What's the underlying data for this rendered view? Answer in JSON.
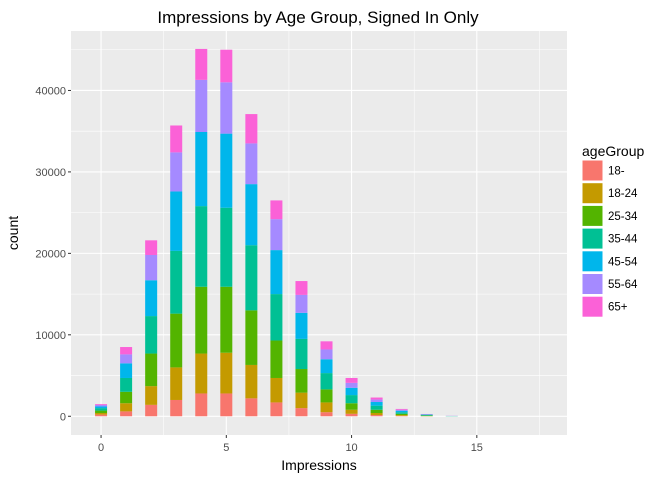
{
  "chart_data": {
    "type": "bar",
    "stacked": true,
    "title": "Impressions by Age Group, Signed In Only",
    "xlabel": "Impressions",
    "ylabel": "count",
    "x": [
      0,
      1,
      2,
      3,
      4,
      5,
      6,
      7,
      8,
      9,
      10,
      11,
      12,
      13,
      14,
      15,
      16,
      17
    ],
    "xlim": [
      -1.2,
      18.6
    ],
    "ylim": [
      -2300,
      47300
    ],
    "xticks": [
      0,
      5,
      10,
      15
    ],
    "xtick_labels": [
      "0",
      "5",
      "10",
      "15"
    ],
    "yticks": [
      0,
      10000,
      20000,
      30000,
      40000
    ],
    "ytick_labels": [
      "0",
      "10000",
      "20000",
      "30000",
      "40000"
    ],
    "grid": true,
    "legend_title": "ageGroup",
    "legend_position": "right",
    "series": [
      {
        "name": "18-",
        "color": "#F8766D",
        "values": [
          200,
          600,
          1400,
          2000,
          2800,
          2800,
          2200,
          1700,
          1000,
          500,
          300,
          150,
          50,
          0,
          0,
          0,
          0,
          0
        ]
      },
      {
        "name": "18-24",
        "color": "#C49A00",
        "values": [
          200,
          1000,
          2300,
          4000,
          4900,
          5000,
          4100,
          3000,
          1900,
          1200,
          500,
          250,
          100,
          30,
          0,
          0,
          0,
          0
        ]
      },
      {
        "name": "25-34",
        "color": "#53B400",
        "values": [
          300,
          1400,
          4000,
          6600,
          8200,
          8100,
          6700,
          4600,
          2900,
          1600,
          800,
          400,
          150,
          50,
          10,
          0,
          0,
          0
        ]
      },
      {
        "name": "35-44",
        "color": "#00C094",
        "values": [
          300,
          1700,
          4600,
          7700,
          9900,
          9700,
          8000,
          5700,
          3700,
          2000,
          1000,
          500,
          200,
          70,
          10,
          0,
          0,
          0
        ]
      },
      {
        "name": "45-54",
        "color": "#00B6EB",
        "values": [
          200,
          1800,
          4400,
          7300,
          9100,
          9100,
          7500,
          5400,
          3200,
          1700,
          900,
          450,
          180,
          60,
          20,
          0,
          0,
          0
        ]
      },
      {
        "name": "55-64",
        "color": "#A58AFF",
        "values": [
          200,
          1100,
          3100,
          4800,
          6400,
          6300,
          5000,
          3800,
          2200,
          1200,
          600,
          300,
          120,
          40,
          10,
          0,
          0,
          0
        ]
      },
      {
        "name": "65+",
        "color": "#FB61D7",
        "values": [
          100,
          900,
          1800,
          3300,
          3800,
          4000,
          3600,
          2300,
          1700,
          1000,
          600,
          250,
          100,
          30,
          10,
          0,
          0,
          0
        ]
      }
    ]
  },
  "colors": {
    "panel_background": "#EBEBEB",
    "gridline": "#FFFFFF"
  }
}
